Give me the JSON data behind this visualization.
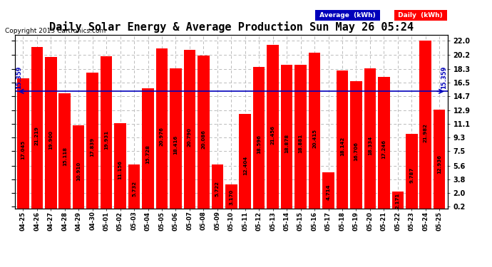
{
  "title": "Daily Solar Energy & Average Production Sun May 26 05:24",
  "copyright": "Copyright 2013 Cartronics.com",
  "average_value": 15.359,
  "average_label": "15.359",
  "categories": [
    "04-25",
    "04-26",
    "04-27",
    "04-28",
    "04-29",
    "04-30",
    "05-01",
    "05-02",
    "05-03",
    "05-04",
    "05-05",
    "05-06",
    "05-07",
    "05-08",
    "05-09",
    "05-10",
    "05-11",
    "05-12",
    "05-13",
    "05-14",
    "05-15",
    "05-16",
    "05-17",
    "05-18",
    "05-19",
    "05-20",
    "05-21",
    "05-22",
    "05-23",
    "05-24",
    "05-25"
  ],
  "values": [
    17.045,
    21.219,
    19.9,
    15.118,
    10.91,
    17.839,
    19.931,
    11.156,
    5.732,
    15.728,
    20.976,
    18.416,
    20.79,
    20.086,
    5.722,
    3.17,
    12.404,
    18.596,
    21.456,
    18.878,
    18.881,
    20.415,
    4.714,
    18.142,
    16.706,
    18.334,
    17.246,
    2.171,
    9.787,
    21.982,
    12.936
  ],
  "bar_color": "#FF0000",
  "avg_line_color": "#0000BB",
  "yticks": [
    0.2,
    2.0,
    3.8,
    5.6,
    7.5,
    9.3,
    11.1,
    12.9,
    14.7,
    16.5,
    18.3,
    20.2,
    22.0
  ],
  "ylim": [
    0,
    22.8
  ],
  "background_color": "#FFFFFF",
  "plot_bg_color": "#FFFFFF",
  "grid_color": "#BBBBBB",
  "title_fontsize": 11,
  "legend_avg_color": "#0000BB",
  "legend_daily_color": "#FF0000"
}
